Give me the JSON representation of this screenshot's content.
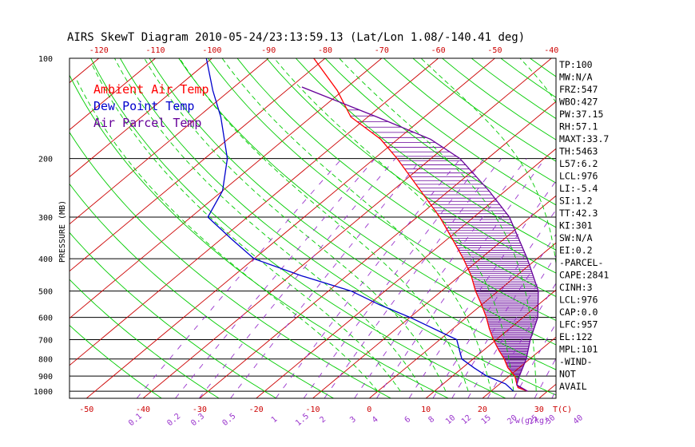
{
  "chart_data": {
    "type": "line",
    "title": "AIRS SkewT Diagram 2010-05-24/23:13:59.13 (Lat/Lon 1.08/-140.41 deg)",
    "ylabel": "PRESSURE (MB)",
    "xlabel_units": "T(C)",
    "mixing_ratio_units": "w(g/kg)",
    "pressure_ticks": [
      100,
      200,
      300,
      400,
      500,
      600,
      700,
      800,
      900,
      1000
    ],
    "bottom_temp_ticks": [
      -50,
      -40,
      -30,
      -20,
      -10,
      0,
      10,
      20,
      30
    ],
    "top_temp_ticks": [
      -120,
      -110,
      -100,
      -90,
      -80,
      -70,
      -60,
      -50,
      -40
    ],
    "mixing_ratio_ticks": [
      "0.1",
      "0.2",
      "0.3",
      "0.5",
      "1",
      "1.5",
      "2",
      "3",
      "4",
      "6",
      "8",
      "10",
      "12",
      "15",
      "20",
      "25",
      "30",
      "40"
    ],
    "ylim": [
      1050,
      100
    ],
    "xlim": [
      -53,
      33
    ],
    "grid": true,
    "legend_position": "top-left",
    "colors": {
      "ambient": "#ff0000",
      "dewpoint": "#0000cc",
      "parcel": "#660099",
      "dry_adiabat": "#00cc00",
      "moist_adiabat": "#00cc00",
      "isotherm": "#cc0000",
      "mixing_ratio": "#9933cc"
    },
    "series": [
      {
        "name": "Ambient Air Temp",
        "points": [
          [
            1000,
            26.5
          ],
          [
            975,
            24.0
          ],
          [
            950,
            23.0
          ],
          [
            900,
            21.0
          ],
          [
            850,
            18.0
          ],
          [
            800,
            15.5
          ],
          [
            750,
            12.5
          ],
          [
            700,
            9.5
          ],
          [
            650,
            6.5
          ],
          [
            600,
            3.5
          ],
          [
            550,
            0.0
          ],
          [
            500,
            -4.0
          ],
          [
            450,
            -8.0
          ],
          [
            400,
            -13.0
          ],
          [
            350,
            -19.0
          ],
          [
            300,
            -26.0
          ],
          [
            250,
            -35.0
          ],
          [
            200,
            -46.0
          ],
          [
            175,
            -53.0
          ],
          [
            150,
            -63.0
          ],
          [
            125,
            -71.0
          ],
          [
            100,
            -82.0
          ]
        ]
      },
      {
        "name": "Dew Point Temp",
        "points": [
          [
            1000,
            24.0
          ],
          [
            950,
            21.0
          ],
          [
            900,
            16.0
          ],
          [
            850,
            12.0
          ],
          [
            800,
            8.0
          ],
          [
            700,
            3.0
          ],
          [
            600,
            -10.0
          ],
          [
            550,
            -18.0
          ],
          [
            500,
            -26.0
          ],
          [
            450,
            -38.0
          ],
          [
            400,
            -50.0
          ],
          [
            350,
            -58.0
          ],
          [
            300,
            -67.0
          ],
          [
            250,
            -70.0
          ],
          [
            200,
            -76.0
          ],
          [
            150,
            -86.0
          ],
          [
            125,
            -93.0
          ],
          [
            100,
            -101.0
          ]
        ]
      },
      {
        "name": "Air Parcel Temp",
        "points": [
          [
            1000,
            26.5
          ],
          [
            957,
            23.2
          ],
          [
            900,
            21.8
          ],
          [
            800,
            19.4
          ],
          [
            700,
            16.0
          ],
          [
            600,
            12.6
          ],
          [
            500,
            7.1
          ],
          [
            400,
            -1.7
          ],
          [
            300,
            -13.7
          ],
          [
            250,
            -22.9
          ],
          [
            200,
            -34.9
          ],
          [
            175,
            -44.2
          ],
          [
            150,
            -58.4
          ],
          [
            122,
            -78.0
          ]
        ]
      }
    ],
    "indices": [
      "TP:100",
      "MW:N/A",
      "FRZ:547",
      "WBO:427",
      "PW:37.15",
      "RH:57.1",
      "MAXT:33.7",
      "TH:5463",
      "L57:6.2",
      "LCL:976",
      "LI:-5.4",
      "SI:1.2",
      "TT:42.3",
      "KI:301",
      "SW:N/A",
      "EI:0.2",
      "-PARCEL-",
      "CAPE:2841",
      "CINH:3",
      "LCL:976",
      "CAP:0.0",
      "LFC:957",
      "EL:122",
      "MPL:101",
      "-WIND-",
      "NOT",
      "AVAIL"
    ]
  }
}
